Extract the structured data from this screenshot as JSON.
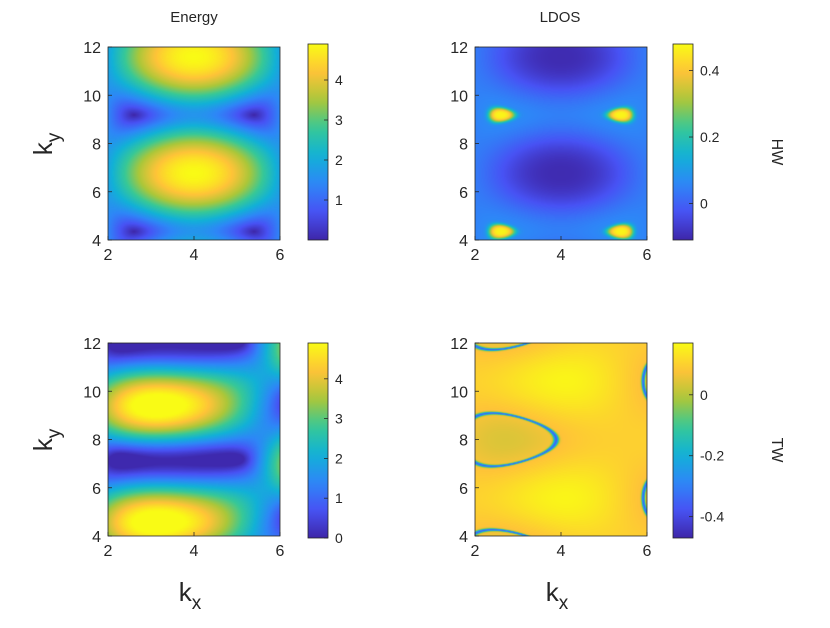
{
  "figure": {
    "xlabel_main": "k",
    "xlabel_sub": "x",
    "ylabel_main": "k",
    "ylabel_sub": "y"
  },
  "chart_data": [
    {
      "type": "heatmap",
      "title": "Energy",
      "side_label": "",
      "xlim": [
        2,
        6
      ],
      "ylim": [
        4,
        12
      ],
      "xticks": [
        2,
        4,
        6
      ],
      "yticks": [
        4,
        6,
        8,
        10,
        12
      ],
      "colorbar": {
        "min": 0,
        "max": 4.9,
        "ticks": [
          1,
          2,
          3,
          4
        ],
        "tick_labels": [
          "1",
          "2",
          "3",
          "4"
        ]
      },
      "pattern": "energy_hw"
    },
    {
      "type": "heatmap",
      "title": "LDOS",
      "side_label": "HW",
      "xlim": [
        2,
        6
      ],
      "ylim": [
        4,
        12
      ],
      "xticks": [
        2,
        4,
        6
      ],
      "yticks": [
        4,
        6,
        8,
        10,
        12
      ],
      "colorbar": {
        "min": -0.11,
        "max": 0.48,
        "ticks": [
          0,
          0.2,
          0.4
        ],
        "tick_labels": [
          "0",
          "0.2",
          "0.4"
        ]
      },
      "pattern": "ldos_hw"
    },
    {
      "type": "heatmap",
      "title": "",
      "side_label": "",
      "xlim": [
        2,
        6
      ],
      "ylim": [
        4,
        12
      ],
      "xticks": [
        2,
        4,
        6
      ],
      "yticks": [
        4,
        6,
        8,
        10,
        12
      ],
      "colorbar": {
        "min": 0,
        "max": 4.9,
        "ticks": [
          0,
          1,
          2,
          3,
          4
        ],
        "tick_labels": [
          "0",
          "1",
          "2",
          "3",
          "4"
        ]
      },
      "pattern": "energy_tw"
    },
    {
      "type": "heatmap",
      "title": "",
      "side_label": "TW",
      "xlim": [
        2,
        6
      ],
      "ylim": [
        4,
        12
      ],
      "xticks": [
        2,
        4,
        6
      ],
      "yticks": [
        4,
        6,
        8,
        10,
        12
      ],
      "colorbar": {
        "min": -0.47,
        "max": 0.17,
        "ticks": [
          -0.4,
          -0.2,
          0
        ],
        "tick_labels": [
          "-0.4",
          "-0.2",
          "0"
        ]
      },
      "pattern": "ldos_tw"
    }
  ]
}
